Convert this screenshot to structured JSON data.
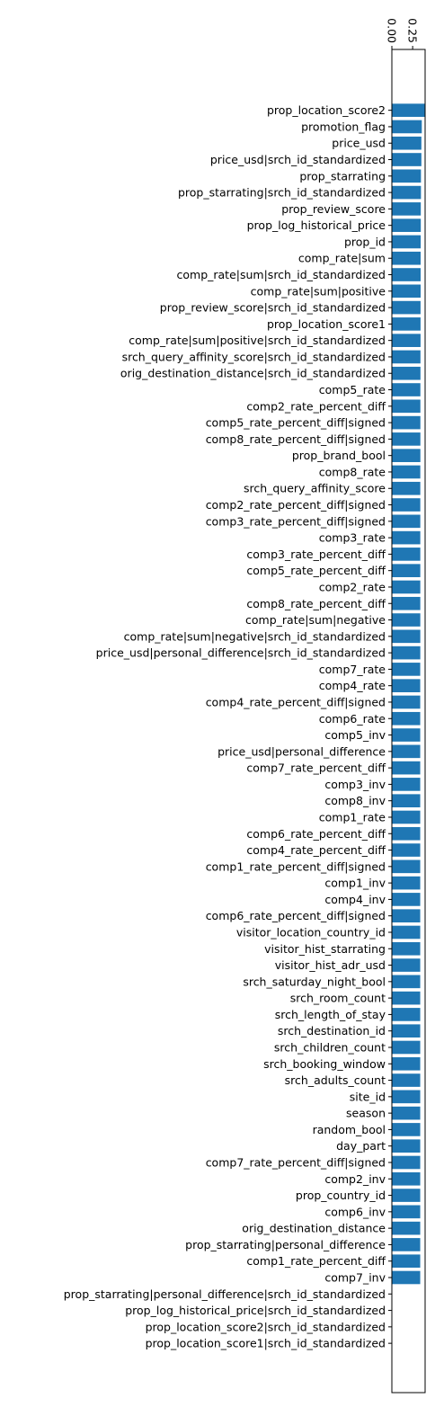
{
  "chart_data": {
    "type": "bar",
    "orientation": "horizontal",
    "color": "#1f77b4",
    "xlim": [
      0,
      0.4
    ],
    "xticks": [
      0.0,
      0.25
    ],
    "xtick_labels": [
      "0.00",
      "0.25"
    ],
    "xaxis_position": "top",
    "xtick_label_rotation": "vertical",
    "ylim_padding_top_rows": 3.7,
    "ylim_padding_bottom_rows": 3.0,
    "title": "",
    "xlabel": "",
    "ylabel": "",
    "grid": false,
    "categories": [
      "prop_location_score2",
      "promotion_flag",
      "price_usd",
      "price_usd|srch_id_standardized",
      "prop_starrating",
      "prop_starrating|srch_id_standardized",
      "prop_review_score",
      "prop_log_historical_price",
      "prop_id",
      "comp_rate|sum",
      "comp_rate|sum|srch_id_standardized",
      "comp_rate|sum|positive",
      "prop_review_score|srch_id_standardized",
      "prop_location_score1",
      "comp_rate|sum|positive|srch_id_standardized",
      "srch_query_affinity_score|srch_id_standardized",
      "orig_destination_distance|srch_id_standardized",
      "comp5_rate",
      "comp2_rate_percent_diff",
      "comp5_rate_percent_diff|signed",
      "comp8_rate_percent_diff|signed",
      "prop_brand_bool",
      "comp8_rate",
      "srch_query_affinity_score",
      "comp2_rate_percent_diff|signed",
      "comp3_rate_percent_diff|signed",
      "comp3_rate",
      "comp3_rate_percent_diff",
      "comp5_rate_percent_diff",
      "comp2_rate",
      "comp8_rate_percent_diff",
      "comp_rate|sum|negative",
      "comp_rate|sum|negative|srch_id_standardized",
      "price_usd|personal_difference|srch_id_standardized",
      "comp7_rate",
      "comp4_rate",
      "comp4_rate_percent_diff|signed",
      "comp6_rate",
      "comp5_inv",
      "price_usd|personal_difference",
      "comp7_rate_percent_diff",
      "comp3_inv",
      "comp8_inv",
      "comp1_rate",
      "comp6_rate_percent_diff",
      "comp4_rate_percent_diff",
      "comp1_rate_percent_diff|signed",
      "comp1_inv",
      "comp4_inv",
      "comp6_rate_percent_diff|signed",
      "visitor_location_country_id",
      "visitor_hist_starrating",
      "visitor_hist_adr_usd",
      "srch_saturday_night_bool",
      "srch_room_count",
      "srch_length_of_stay",
      "srch_destination_id",
      "srch_children_count",
      "srch_booking_window",
      "srch_adults_count",
      "site_id",
      "season",
      "random_bool",
      "day_part",
      "comp7_rate_percent_diff|signed",
      "comp2_inv",
      "prop_country_id",
      "comp6_inv",
      "orig_destination_distance",
      "prop_starrating|personal_difference",
      "comp1_rate_percent_diff",
      "comp7_inv",
      "prop_starrating|personal_difference|srch_id_standardized",
      "prop_log_historical_price|srch_id_standardized",
      "prop_location_score2|srch_id_standardized",
      "prop_location_score1|srch_id_standardized"
    ],
    "values": [
      0.4,
      0.36,
      0.355,
      0.355,
      0.35,
      0.35,
      0.348,
      0.348,
      0.347,
      0.346,
      0.346,
      0.346,
      0.345,
      0.345,
      0.345,
      0.344,
      0.344,
      0.343,
      0.343,
      0.343,
      0.343,
      0.343,
      0.342,
      0.342,
      0.342,
      0.342,
      0.342,
      0.342,
      0.342,
      0.342,
      0.342,
      0.342,
      0.342,
      0.342,
      0.341,
      0.341,
      0.341,
      0.341,
      0.341,
      0.341,
      0.341,
      0.341,
      0.341,
      0.341,
      0.341,
      0.341,
      0.341,
      0.341,
      0.341,
      0.341,
      0.341,
      0.341,
      0.341,
      0.341,
      0.341,
      0.341,
      0.341,
      0.341,
      0.341,
      0.341,
      0.341,
      0.341,
      0.341,
      0.341,
      0.341,
      0.341,
      0.341,
      0.341,
      0.341,
      0.341,
      0.341,
      0.341,
      0,
      0,
      0,
      0
    ]
  }
}
